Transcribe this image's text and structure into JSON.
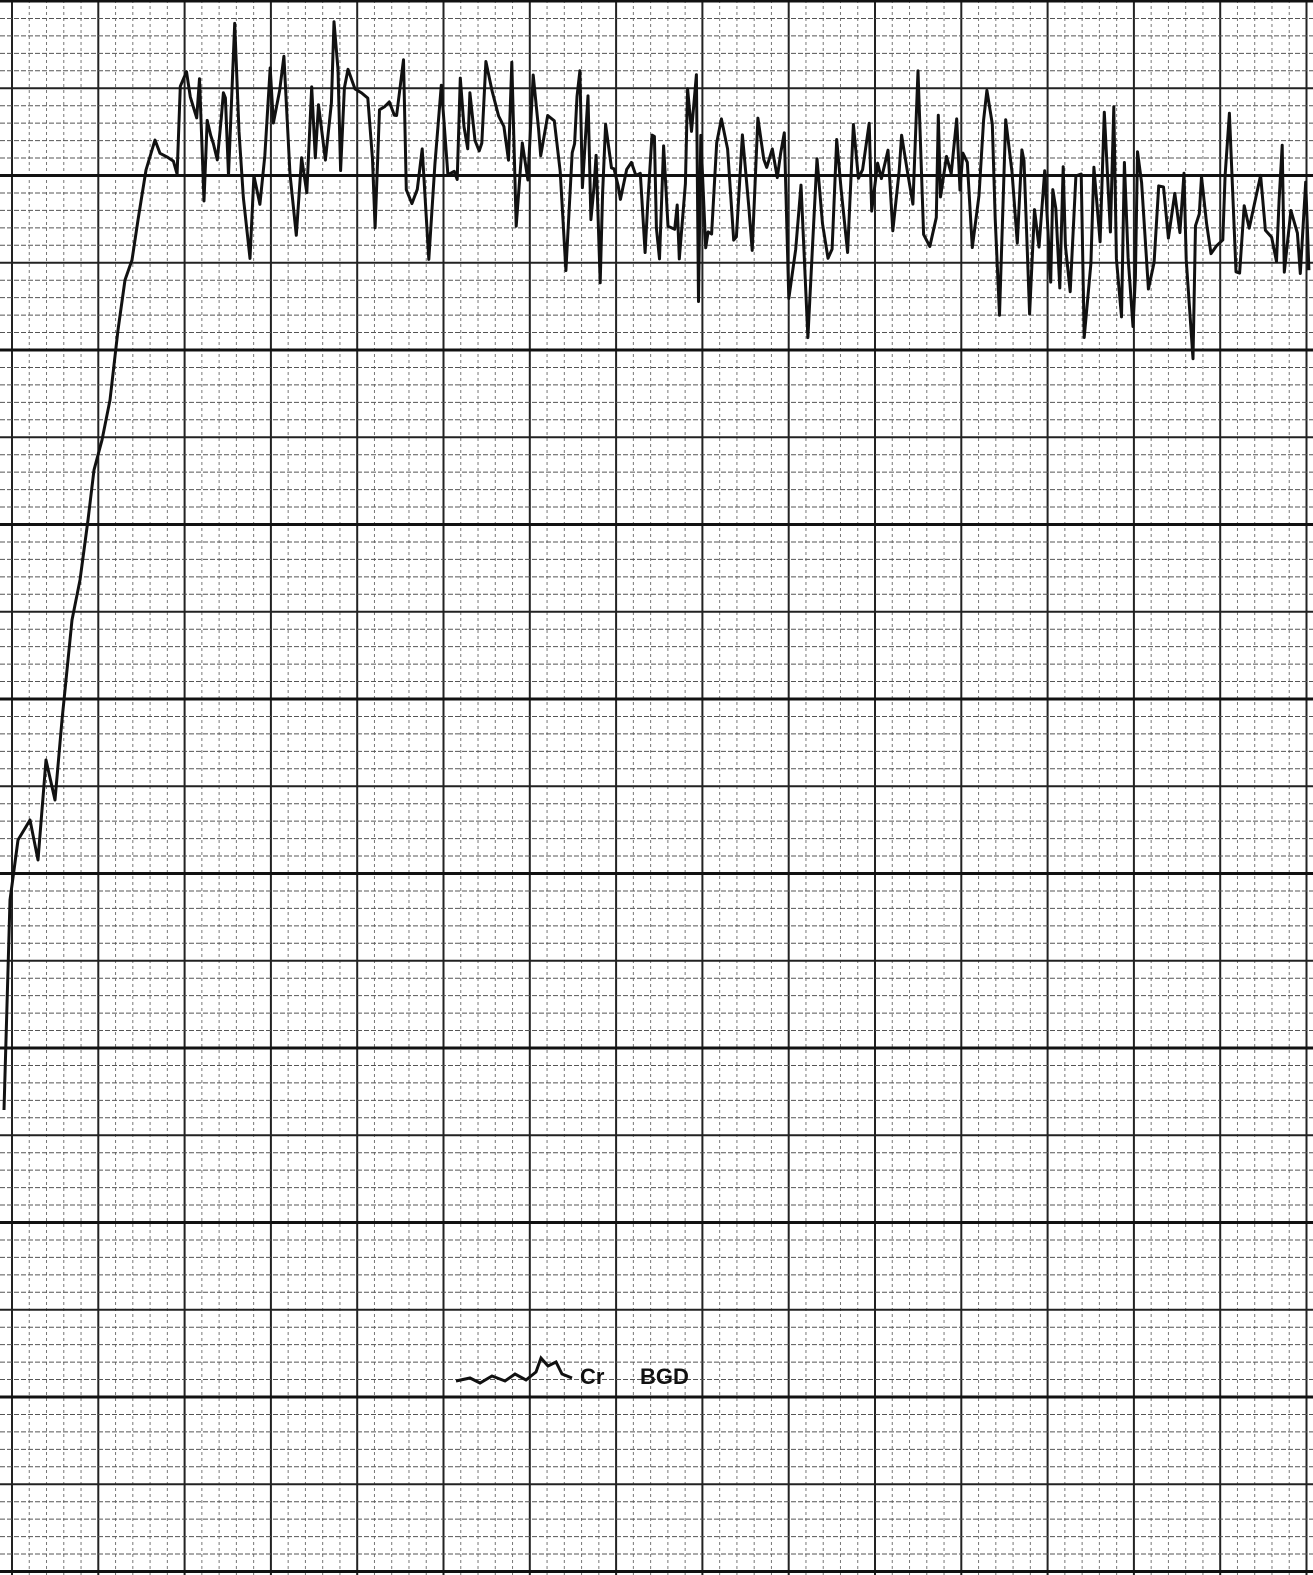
{
  "annotations": {
    "trace_label": "Cr",
    "background_label": "BGD"
  }
}
